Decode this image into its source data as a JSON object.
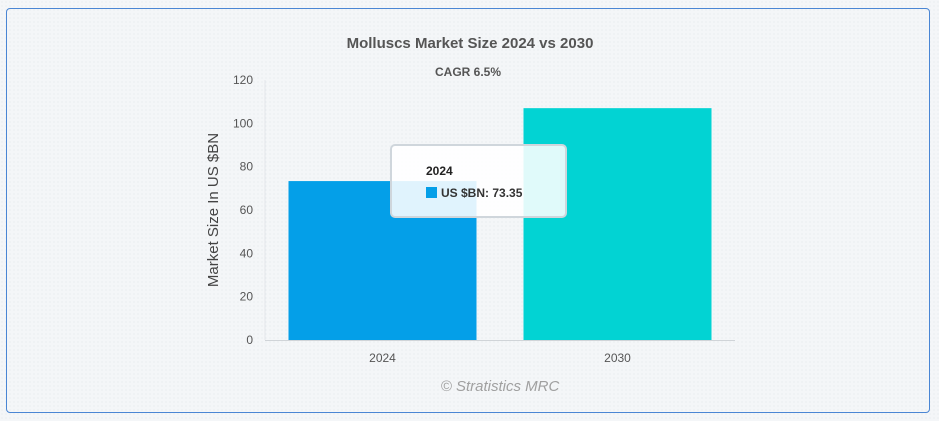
{
  "chart_data": {
    "type": "bar",
    "title": "Molluscs Market Size 2024 vs 2030",
    "subtitle": "CAGR 6.5%",
    "ylabel": "Market Size In US $BN",
    "xlabel": "",
    "categories": [
      "2024",
      "2030"
    ],
    "series": [
      {
        "name": "US $BN",
        "values": [
          73.35,
          107
        ]
      }
    ],
    "colors": [
      "#049fe8",
      "#02d3d3"
    ],
    "ylim": [
      0,
      120
    ],
    "yticks": [
      0,
      20,
      40,
      60,
      80,
      100,
      120
    ],
    "grid": false,
    "legend": "none"
  },
  "tooltip": {
    "title": "2024",
    "label": "US $BN: 73.35"
  },
  "credit": "© Stratistics MRC"
}
